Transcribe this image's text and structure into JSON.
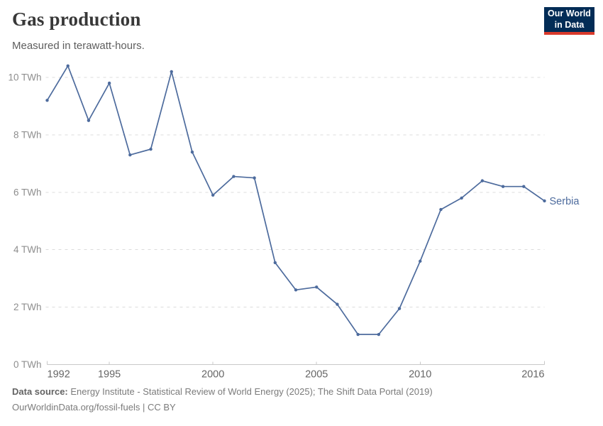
{
  "header": {
    "title": "Gas production",
    "subtitle": "Measured in terawatt-hours."
  },
  "logo": {
    "line1": "Our World",
    "line2": "in Data",
    "bg_color": "#022c56",
    "accent_color": "#d93a2b"
  },
  "chart_data": {
    "type": "line",
    "title": "Gas production",
    "subtitle": "Measured in terawatt-hours.",
    "unit": "TWh",
    "x": [
      1992,
      1993,
      1994,
      1995,
      1996,
      1997,
      1998,
      1999,
      2000,
      2001,
      2002,
      2003,
      2004,
      2005,
      2006,
      2007,
      2008,
      2009,
      2010,
      2011,
      2012,
      2013,
      2014,
      2015,
      2016
    ],
    "series": [
      {
        "name": "Serbia",
        "color": "#4d6b9d",
        "values": [
          9.2,
          10.4,
          8.5,
          9.8,
          7.3,
          7.5,
          10.2,
          7.4,
          5.9,
          6.55,
          6.5,
          3.55,
          2.6,
          2.7,
          2.1,
          1.05,
          1.05,
          1.95,
          3.6,
          5.4,
          5.8,
          6.4,
          6.2,
          6.2,
          5.7
        ]
      }
    ],
    "x_ticks": [
      1992,
      1995,
      2000,
      2005,
      2010,
      2016
    ],
    "x_tick_labels": [
      "1992",
      "1995",
      "2000",
      "2005",
      "2010",
      "2016"
    ],
    "y_ticks": [
      0,
      2,
      4,
      6,
      8,
      10
    ],
    "y_tick_labels": [
      "0 TWh",
      "2 TWh",
      "4 TWh",
      "6 TWh",
      "8 TWh",
      "10 TWh"
    ],
    "ylim": [
      0,
      10.5
    ],
    "xlim": [
      1992,
      2016
    ],
    "grid": "dashed-horizontal",
    "legend_position": "end-of-line",
    "colors": {
      "grid": "#dcdcdc",
      "axis": "#c8c8c8",
      "y_tick_text": "#8e8e8e",
      "x_tick_text": "#666666"
    }
  },
  "footer": {
    "source_label": "Data source:",
    "source_text": "Energy Institute - Statistical Review of World Energy (2025); The Shift Data Portal (2019)",
    "license_line": "OurWorldinData.org/fossil-fuels | CC BY"
  }
}
